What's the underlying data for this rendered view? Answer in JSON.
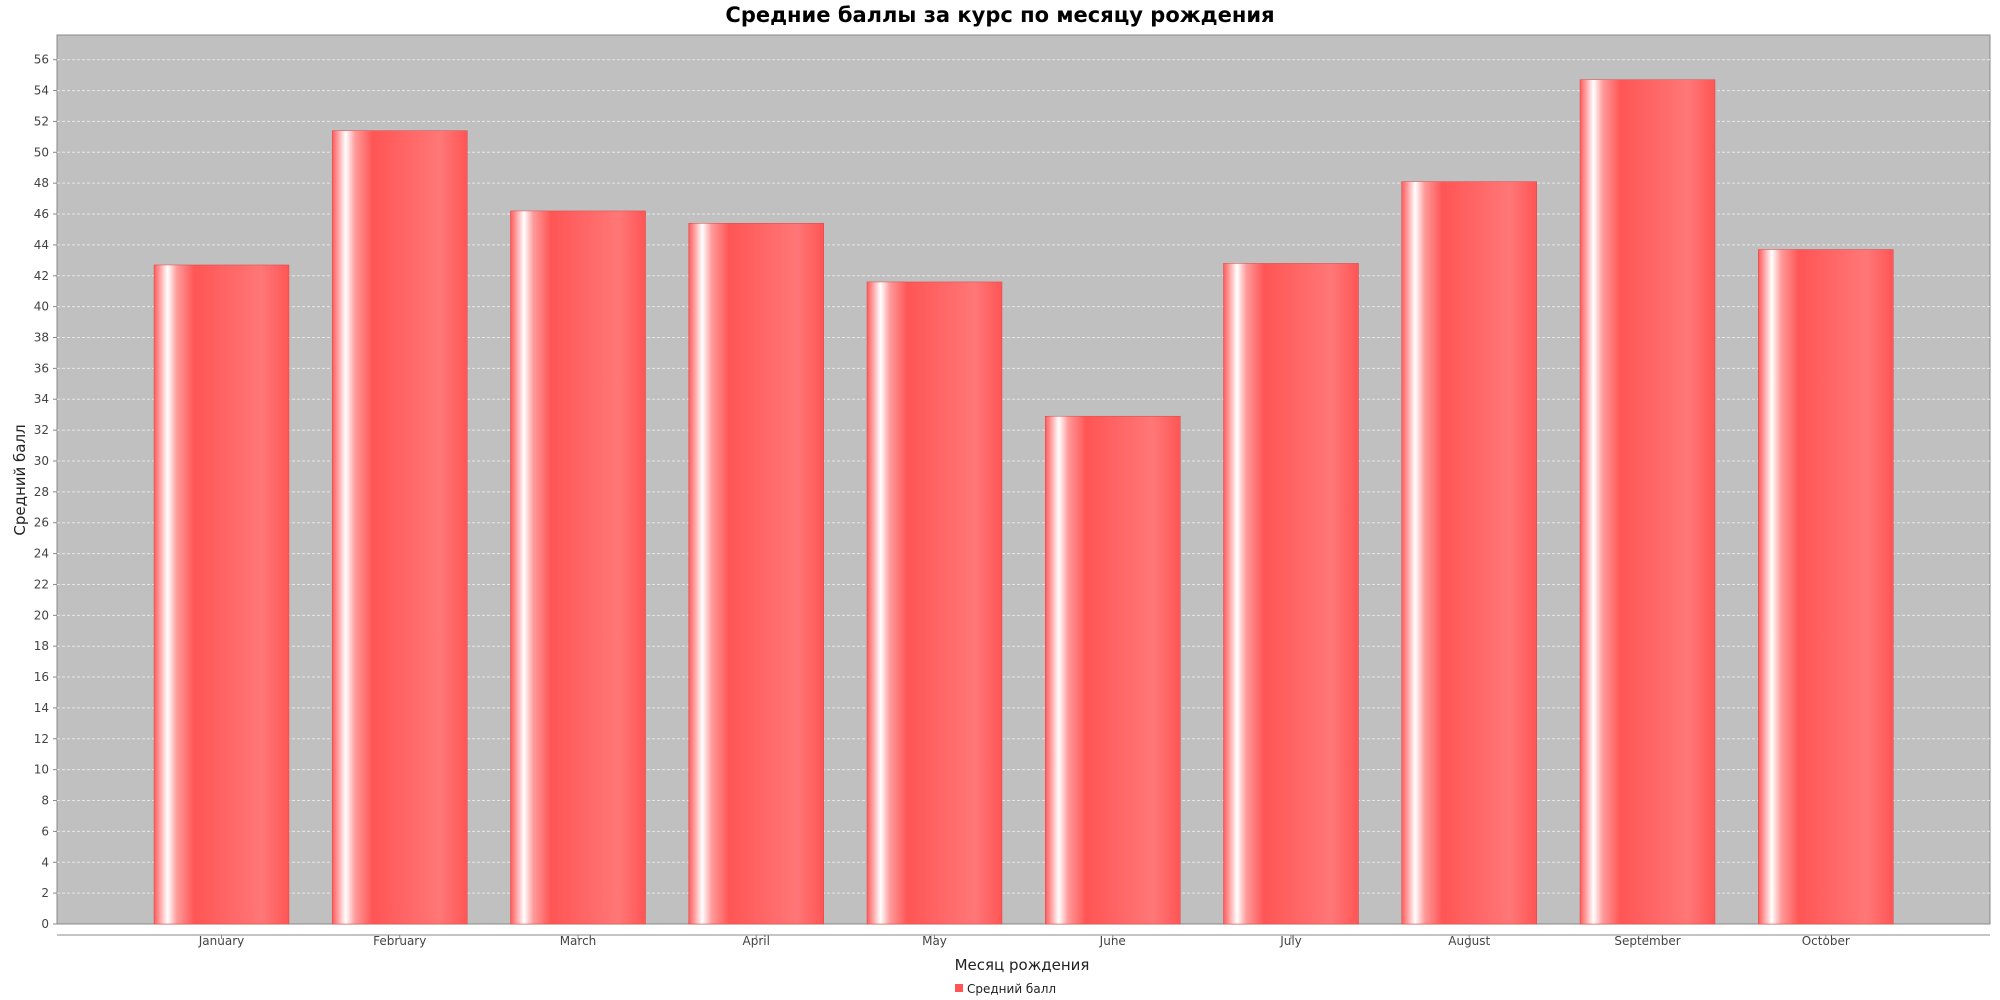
{
  "chart_data": {
    "type": "bar",
    "title": "Средние баллы за курс по месяцу рождения",
    "xlabel": "Месяц рождения",
    "ylabel": "Средний балл",
    "categories": [
      "January",
      "February",
      "March",
      "April",
      "May",
      "June",
      "July",
      "August",
      "September",
      "October"
    ],
    "series": [
      {
        "name": "Средний балл",
        "values": [
          42.7,
          51.4,
          46.2,
          45.4,
          41.6,
          32.9,
          42.8,
          48.1,
          54.7,
          43.7
        ]
      }
    ],
    "ylim": [
      0,
      57.6
    ],
    "yticks": [
      0,
      2,
      4,
      6,
      8,
      10,
      12,
      14,
      16,
      18,
      20,
      22,
      24,
      26,
      28,
      30,
      32,
      34,
      36,
      38,
      40,
      42,
      44,
      46,
      48,
      50,
      52,
      54,
      56
    ],
    "grid": true,
    "legend_position": "bottom",
    "colors": {
      "bar": "#ff5555",
      "plot_background": "#c0c0c0",
      "gridline": "#e6e6e6"
    }
  }
}
